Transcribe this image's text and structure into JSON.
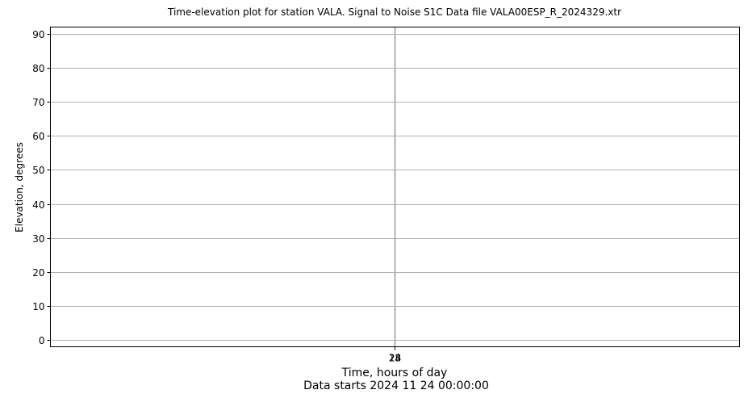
{
  "chart_data": {
    "type": "scatter",
    "title": "Time-elevation plot for station VALA.    Signal to Noise S1C    Data file VALA00ESP_R_2024329.xtr",
    "xlabel": "Time, hours of day",
    "xlabel_sub": "Data starts 2024 11 24 00:00:00",
    "ylabel": "Elevation, degrees",
    "ylim": [
      -2,
      92
    ],
    "yticks": [
      0,
      10,
      20,
      30,
      40,
      50,
      60,
      70,
      80,
      90
    ],
    "xticks": [
      "24",
      "23",
      "18"
    ],
    "xgrid": true,
    "ygrid": true,
    "series": []
  }
}
